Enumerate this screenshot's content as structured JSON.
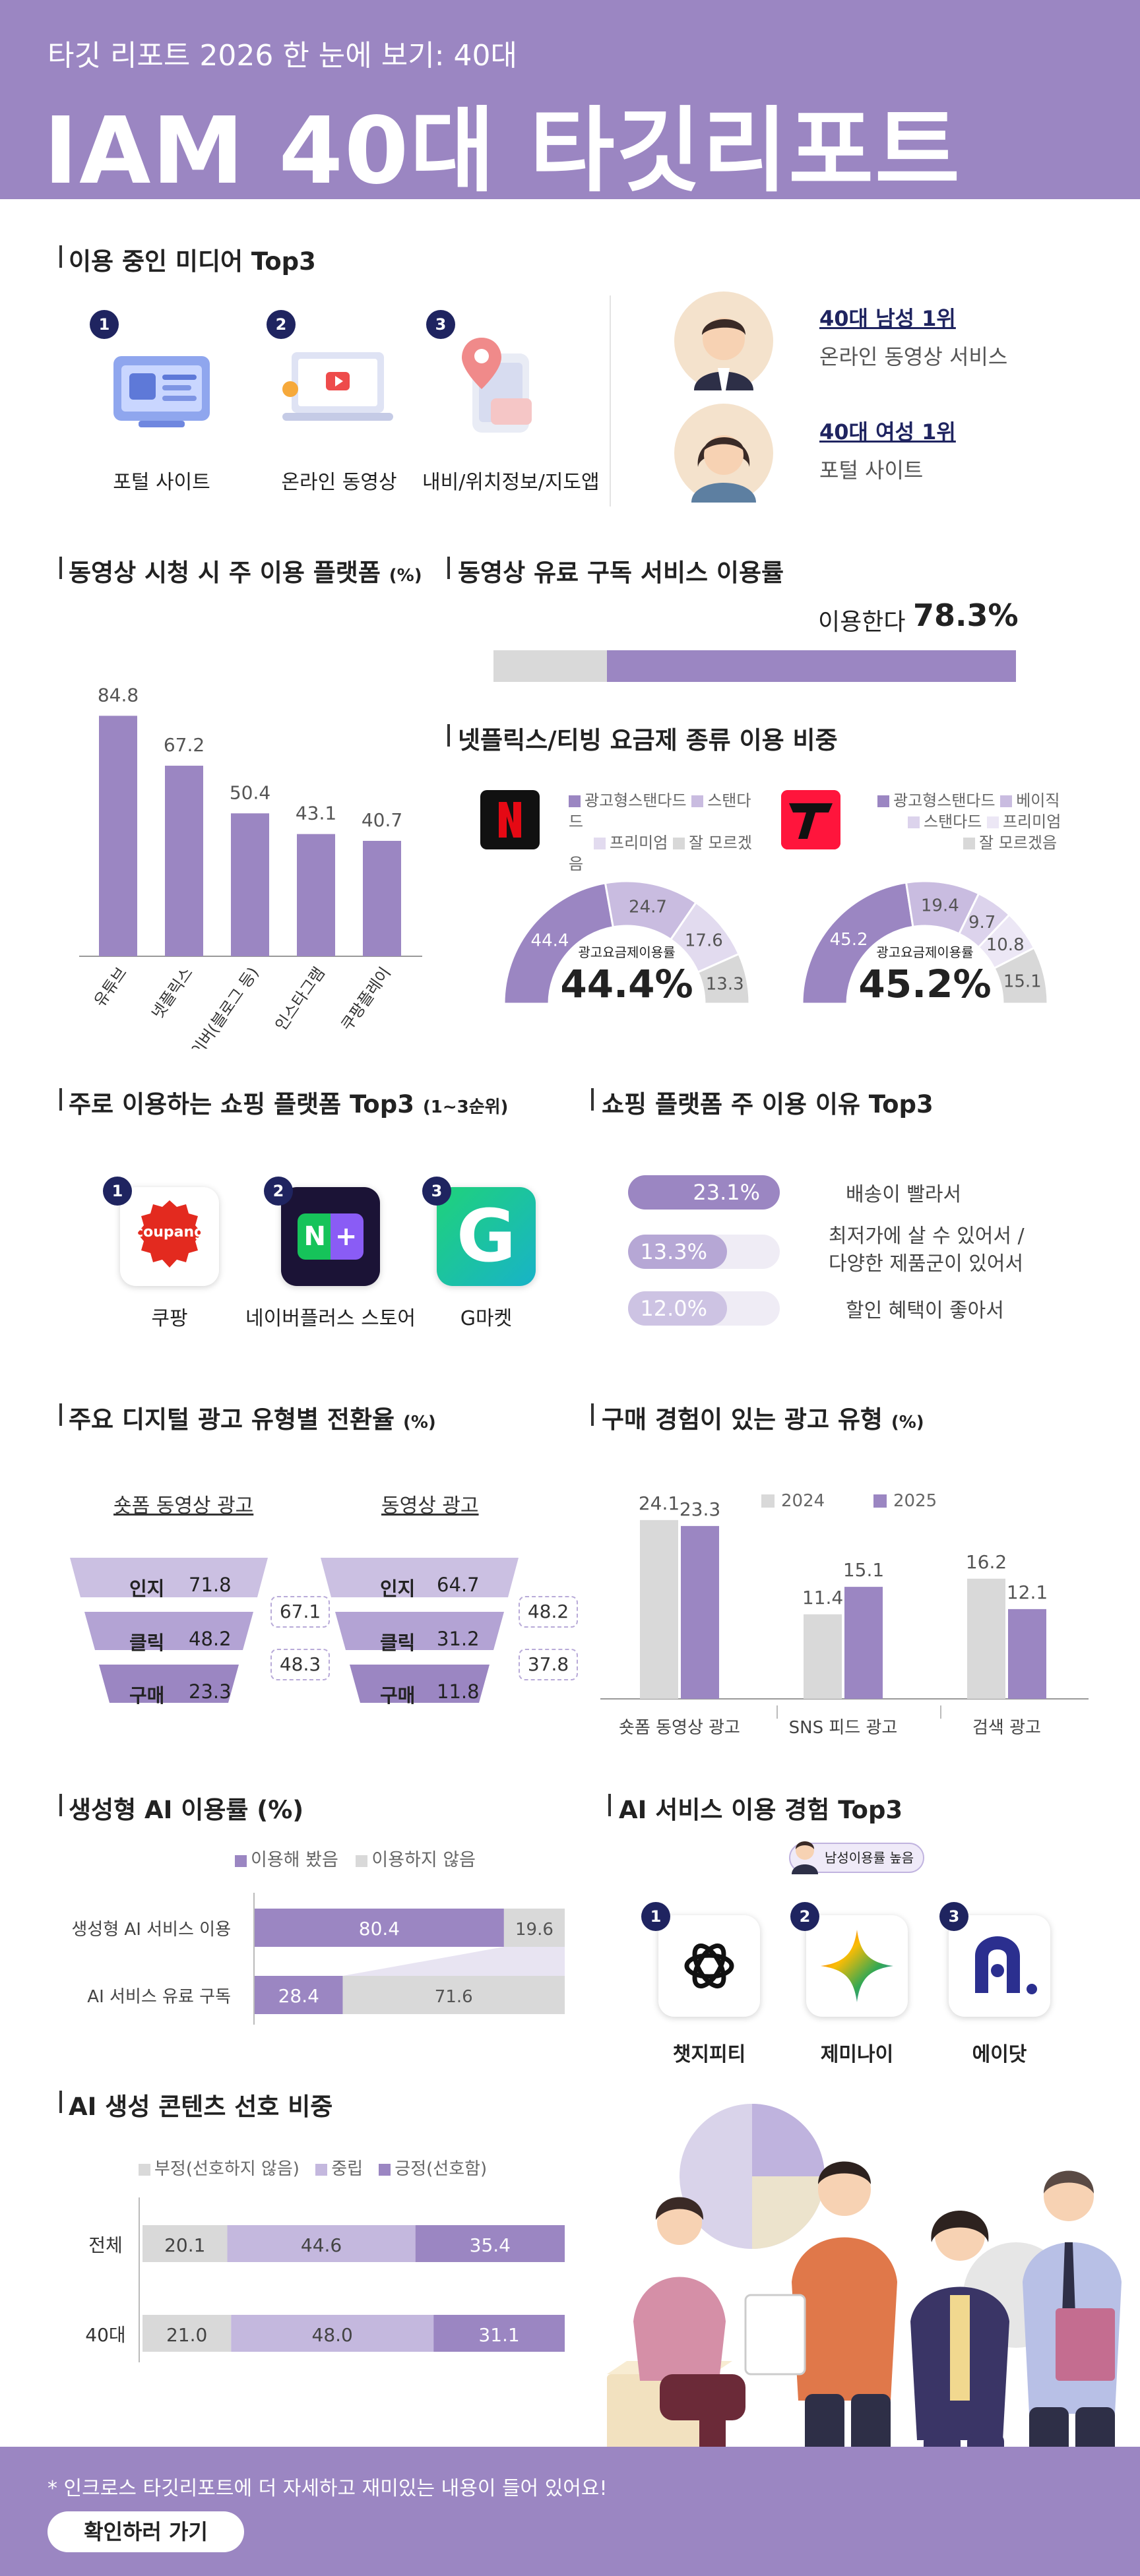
{
  "header": {
    "subtitle": "타깃 리포트 2026 한 눈에 보기: 40대",
    "title": "IAM 40대 타깃리포트"
  },
  "media": {
    "title": "이용 중인 미디어 Top3",
    "items": [
      {
        "rank": "1",
        "label": "포털 사이트"
      },
      {
        "rank": "2",
        "label": "온라인 동영상"
      },
      {
        "rank": "3",
        "label": "내비/위치정보/지도앱"
      }
    ],
    "male": {
      "title": "40대 남성 1위",
      "value": "온라인 동영상 서비스"
    },
    "female": {
      "title": "40대 여성 1위",
      "value": "포털 사이트"
    }
  },
  "video_platform": {
    "title": "동영상 시청 시 주 이용 플랫폼",
    "unit": "(%)"
  },
  "subscription": {
    "title": "동영상 유료 구독 서비스 이용률",
    "label": "이용한다",
    "value": "78.3%"
  },
  "plans": {
    "title": "넷플릭스/티빙 요금제 종류 이용 비중",
    "netflix_legend": [
      "광고형스탠다드",
      "스탠다드",
      "프리미엄",
      "잘 모르겠음"
    ],
    "tving_legend": [
      "광고형스탠다드",
      "베이직",
      "스탠다드",
      "프리미엄",
      "잘 모르겠음"
    ],
    "center_label": "광고요금제이용률",
    "netflix_rate": "44.4%",
    "tving_rate": "45.2%",
    "netflix_values": [
      "44.4",
      "24.7",
      "17.6",
      "13.3"
    ],
    "tving_values": [
      "45.2",
      "19.4",
      "9.7",
      "10.8",
      "15.1"
    ],
    "netflix_colors": [
      "#9b86c2",
      "#c9bce0",
      "#e2dbef",
      "#d8d8d8"
    ],
    "tving_colors": [
      "#9b86c2",
      "#c9bce0",
      "#dcd3ec",
      "#ece7f5",
      "#d8d8d8"
    ]
  },
  "shopping": {
    "title": "주로 이용하는 쇼핑 플랫폼 Top3",
    "unit": "(1~3순위)",
    "items": [
      {
        "rank": "1",
        "label": "쿠팡",
        "logo": "coupang"
      },
      {
        "rank": "2",
        "label": "네이버플러스 스토어",
        "logo": "N +"
      },
      {
        "rank": "3",
        "label": "G마켓",
        "logo": "G"
      }
    ]
  },
  "shopping_reason": {
    "title": "쇼핑 플랫폼 주 이용 이유 Top3",
    "items": [
      {
        "value": "23.1%",
        "text": "배송이 빨라서",
        "color": "#9b86c2"
      },
      {
        "value": "13.3%",
        "text": "최저가에 살 수 있어서 / 다양한 제품군이 있어서",
        "text1": "최저가에 살 수 있어서 /",
        "text2": "다양한 제품군이 있어서",
        "color": "#b6a7d5"
      },
      {
        "value": "12.0%",
        "text": "할인 혜택이 좋아서",
        "color": "#cdc3e3"
      }
    ]
  },
  "ad_conversion": {
    "title": "주요 디지털 광고 유형별 전환율",
    "unit": "(%)",
    "left": {
      "title": "숏폼 동영상 광고",
      "rows": [
        {
          "k": "인지",
          "v": "71.8"
        },
        {
          "k": "클릭",
          "v": "48.2"
        },
        {
          "k": "구매",
          "v": "23.3"
        }
      ],
      "rates": [
        "67.1",
        "48.3"
      ]
    },
    "right": {
      "title": "동영상 광고",
      "rows": [
        {
          "k": "인지",
          "v": "64.7"
        },
        {
          "k": "클릭",
          "v": "31.2"
        },
        {
          "k": "구매",
          "v": "11.8"
        }
      ],
      "rates": [
        "48.2",
        "37.8"
      ]
    }
  },
  "genai": {
    "title": "생성형 AI 이용률 (%)",
    "legend": [
      "이용해 봤음",
      "이용하지 않음"
    ],
    "rows": [
      {
        "label": "생성형 AI 서비스 이용",
        "used": 80.4,
        "used_label": "80.4",
        "not_label": "19.6"
      },
      {
        "label": "AI 서비스 유료 구독",
        "used": 28.4,
        "used_label": "28.4",
        "not_label": "71.6"
      }
    ]
  },
  "ai_service": {
    "title": "AI 서비스 이용 경험 Top3",
    "badge": "남성이용률 높음",
    "items": [
      {
        "rank": "1",
        "label": "챗지피티"
      },
      {
        "rank": "2",
        "label": "제미나이"
      },
      {
        "rank": "3",
        "label": "에이닷"
      }
    ]
  },
  "ai_content": {
    "title": "AI 생성 콘텐츠 선호 비중",
    "legend": [
      "부정(선호하지 않음)",
      "중립",
      "긍정(선호함)"
    ],
    "rows": [
      {
        "label": "전체",
        "values": [
          20.1,
          44.6,
          35.4
        ],
        "labels": [
          "20.1",
          "44.6",
          "35.4"
        ]
      },
      {
        "label": "40대",
        "values": [
          21.0,
          48.0,
          31.1
        ],
        "labels": [
          "21.0",
          "48.0",
          "31.1"
        ]
      }
    ]
  },
  "footer": {
    "note": "* 인크로스 타깃리포트에 더 자세하고 재미있는 내용이 들어 있어요!",
    "button": "확인하러 가기"
  },
  "colors": {
    "accent": "#9b86c2",
    "gray": "#d9d9d9",
    "navy": "#1f2460"
  },
  "chart_data": [
    {
      "type": "bar",
      "categories": [
        "유튜브",
        "넷플릭스",
        "네이버(블로그 등)",
        "인스타그램",
        "쿠팡플레이"
      ],
      "values": [
        84.8,
        67.2,
        50.4,
        43.1,
        40.7
      ],
      "title": "동영상 시청 시 주 이용 플랫폼",
      "ylim": [
        0,
        100
      ]
    },
    {
      "type": "bar",
      "categories": [
        "숏폼 동영상 광고",
        "SNS 피드 광고",
        "검색 광고"
      ],
      "series": [
        {
          "name": "2024",
          "values": [
            24.1,
            11.4,
            16.2
          ],
          "color": "#d9d9d9"
        },
        {
          "name": "2025",
          "values": [
            23.3,
            15.1,
            12.1
          ],
          "color": "#9b86c2"
        }
      ],
      "title": "구매 경험이 있는 광고 유형",
      "ylim": [
        0,
        30
      ]
    }
  ]
}
